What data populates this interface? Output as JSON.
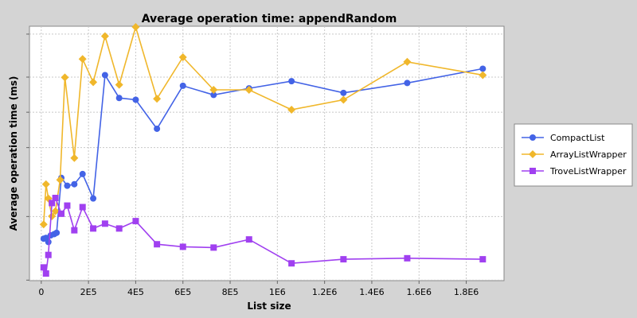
{
  "chart_data": {
    "type": "line",
    "title": "Average operation time: appendRandom",
    "xlabel": "List size",
    "ylabel": "Average operation time (ms)",
    "xlim": [
      -50000,
      1960000
    ],
    "ylim": [
      0,
      1
    ],
    "x_ticks": [
      0,
      200000,
      400000,
      600000,
      800000,
      1000000,
      1200000,
      1400000,
      1600000,
      1800000
    ],
    "x_tick_labels": [
      "0",
      "2E5",
      "4E5",
      "6E5",
      "8E5",
      "1E6",
      "1.2E6",
      "1.4E6",
      "1.6E6",
      "1.8E6"
    ],
    "y_ticks": [],
    "y_tick_labels": [],
    "grid": true,
    "legend_position": "right",
    "series": [
      {
        "name": "CompactList",
        "color": "#4363e6",
        "marker": "circle",
        "x": [
          10000,
          20000,
          30000,
          40000,
          55000,
          65000,
          85000,
          110000,
          140000,
          175000,
          220000,
          270000,
          330000,
          400000,
          490000,
          600000,
          730000,
          880000,
          1060000,
          1280000,
          1550000,
          1870000
        ],
        "y": [
          0.165,
          0.168,
          0.152,
          0.178,
          0.183,
          0.188,
          0.404,
          0.373,
          0.379,
          0.419,
          0.323,
          0.808,
          0.718,
          0.711,
          0.597,
          0.766,
          0.73,
          0.756,
          0.784,
          0.738,
          0.777,
          0.833
        ]
      },
      {
        "name": "ArrayListWrapper",
        "color": "#f0b72b",
        "marker": "diamond",
        "x": [
          10000,
          20000,
          30000,
          45000,
          60000,
          80000,
          100000,
          140000,
          175000,
          220000,
          270000,
          330000,
          400000,
          490000,
          600000,
          730000,
          880000,
          1060000,
          1280000,
          1550000,
          1870000
        ],
        "y": [
          0.221,
          0.379,
          0.323,
          0.253,
          0.273,
          0.396,
          0.799,
          0.482,
          0.871,
          0.78,
          0.961,
          0.77,
          0.997,
          0.715,
          0.878,
          0.75,
          0.75,
          0.672,
          0.711,
          0.86,
          0.808
        ]
      },
      {
        "name": "TroveListWrapper",
        "color": "#a040f0",
        "marker": "square",
        "x": [
          10000,
          20000,
          30000,
          45000,
          60000,
          85000,
          110000,
          140000,
          175000,
          220000,
          270000,
          330000,
          400000,
          490000,
          600000,
          730000,
          880000,
          1060000,
          1280000,
          1550000,
          1870000
        ],
        "y": [
          0.052,
          0.028,
          0.101,
          0.305,
          0.325,
          0.263,
          0.295,
          0.198,
          0.289,
          0.205,
          0.224,
          0.205,
          0.234,
          0.143,
          0.133,
          0.13,
          0.162,
          0.068,
          0.084,
          0.088,
          0.084
        ]
      }
    ]
  }
}
